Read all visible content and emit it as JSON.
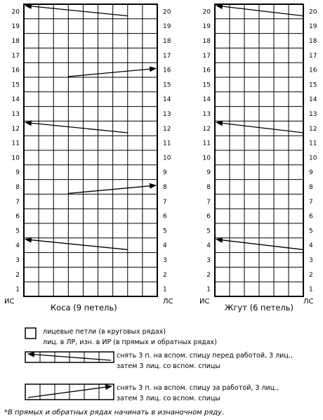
{
  "charts": [
    {
      "id": "kosa",
      "title": "Коса (9 петель)",
      "stitches": 9,
      "rows": 20,
      "left_label": "ИС",
      "right_label": "ЛС",
      "arrows": [
        {
          "row": 20,
          "from_stitch": 3,
          "to_stitch": 9,
          "direction": "left"
        },
        {
          "row": 16,
          "from_stitch": 7,
          "to_stitch": 1,
          "direction": "right"
        },
        {
          "row": 12,
          "from_stitch": 3,
          "to_stitch": 9,
          "direction": "left"
        },
        {
          "row": 8,
          "from_stitch": 7,
          "to_stitch": 1,
          "direction": "right"
        },
        {
          "row": 4,
          "from_stitch": 3,
          "to_stitch": 9,
          "direction": "left"
        }
      ]
    },
    {
      "id": "zhgut",
      "title": "Жгут (6 петель)",
      "stitches": 6,
      "rows": 20,
      "left_label": "ИС",
      "right_label": "ЛС",
      "arrows": [
        {
          "row": 20,
          "from_stitch": 1,
          "to_stitch": 6,
          "direction": "left"
        },
        {
          "row": 12,
          "from_stitch": 1,
          "to_stitch": 6,
          "direction": "left"
        },
        {
          "row": 4,
          "from_stitch": 1,
          "to_stitch": 6,
          "direction": "left"
        }
      ]
    }
  ],
  "legend": [
    {
      "symbol": "empty-cell",
      "lines": [
        "лицевые петли (в круговых рядах)",
        "лиц. в ЛР, изн. в ИР (в прямых и обратных рядах)"
      ]
    },
    {
      "symbol": "cable-left",
      "lines": [
        "снять 3 п. на вспом. спицу перед работой, 3 лиц.,",
        "затем 3 лиц. со вспом. спицы"
      ]
    },
    {
      "symbol": "cable-right",
      "lines": [
        "снять 3 п. на вспом. спицу за работой, 3 лиц.,",
        "затем 3 лиц. со вспом. спицы"
      ]
    }
  ],
  "footnote": "*В прямых и обратных рядах начинать в изнаночном ряду."
}
